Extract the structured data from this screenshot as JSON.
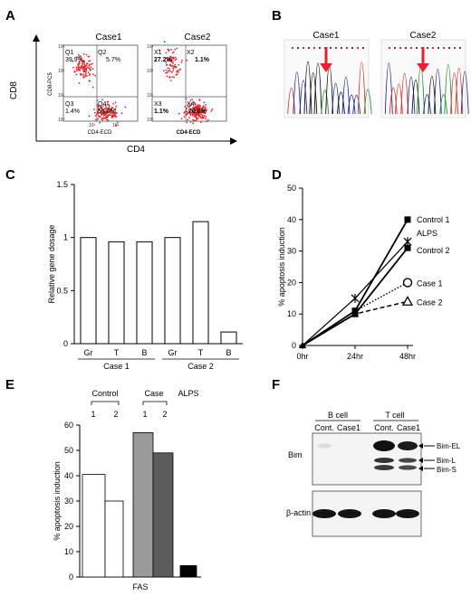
{
  "panels": {
    "A": {
      "letter": "A",
      "case1_title": "Case1",
      "case2_title": "Case2",
      "ylabel": "CD8",
      "xlabel": "CD4",
      "c1_ylabel": "CD8-PC5",
      "c1_xlabel": "CD4-ECD",
      "c2_xlabel": "CD4-ECD",
      "case1_quadrants": {
        "q1": "Q1",
        "q1v": "39.9%",
        "q2": "Q2",
        "q2v": "5.7%",
        "q3": "Q3",
        "q3v": "1.4%",
        "q4": "Q4",
        "q4v": "53.0%"
      },
      "case2_quadrants": {
        "q1": "X1",
        "q1v": "27.2%",
        "q2": "X2",
        "q2v": "1.1%",
        "q3": "X3",
        "q3v": "1.1%",
        "q4": "X4",
        "q4v": "70.6%"
      },
      "ticks": [
        "10³",
        "10²",
        "10¹",
        "10⁰",
        "10¹",
        "10²"
      ]
    },
    "B": {
      "letter": "B",
      "case1": "Case1",
      "case2": "Case2"
    },
    "C": {
      "letter": "C"
    },
    "D": {
      "letter": "D"
    },
    "E": {
      "letter": "E",
      "control": "Control",
      "case": "Case",
      "alps": "ALPS",
      "n1": "1",
      "n2": "2",
      "n3": "1",
      "n4": "2"
    },
    "F": {
      "letter": "F",
      "bcell": "B cell",
      "tcell": "T cell",
      "cont1": "Cont.",
      "case1a": "Case1",
      "cont2": "Cont.",
      "case1b": "Case1",
      "bim": "Bim",
      "actin": "β-actin",
      "bim_el": "Bim-EL",
      "bim_l": "Bim-L",
      "bim_s": "Bim-S"
    }
  },
  "chart_data": [
    {
      "panel": "C",
      "type": "bar",
      "categories": [
        "Gr",
        "T",
        "B",
        "Gr",
        "T",
        "B"
      ],
      "groups": [
        "Case 1",
        "Case 2"
      ],
      "values": [
        1.0,
        0.96,
        0.96,
        1.0,
        1.15,
        0.11
      ],
      "ylabel": "Relative gene dosage",
      "ylim": [
        0,
        1.5
      ],
      "yticks": [
        "0",
        "0.5",
        "1",
        "1.5"
      ]
    },
    {
      "panel": "D",
      "type": "line",
      "x": [
        "0hr",
        "24hr",
        "48hr"
      ],
      "ylabel": "% apoptosis induction",
      "ylim": [
        0,
        50
      ],
      "yticks": [
        "0",
        "10",
        "20",
        "30",
        "40",
        "50"
      ],
      "series": [
        {
          "name": "Control 1",
          "values": [
            0,
            11,
            40
          ]
        },
        {
          "name": "ALPS",
          "values": [
            0,
            15,
            33
          ]
        },
        {
          "name": "Control 2",
          "values": [
            0,
            10,
            31
          ]
        },
        {
          "name": "Case 1",
          "values": [
            0,
            11,
            20
          ]
        },
        {
          "name": "Case 2",
          "values": [
            0,
            10,
            14
          ]
        }
      ]
    },
    {
      "panel": "E",
      "type": "bar",
      "categories": [
        "1",
        "2",
        "1",
        "2",
        ""
      ],
      "values": [
        40.5,
        30,
        57,
        49,
        4.5
      ],
      "colors": [
        "#ffffff",
        "#ffffff",
        "#9a9a9a",
        "#5c5c5c",
        "#000000"
      ],
      "ylabel": "% apoptosis induction",
      "xlabel": "FAS",
      "ylim": [
        0,
        60
      ],
      "yticks": [
        "0",
        "10",
        "20",
        "30",
        "40",
        "50",
        "60"
      ]
    }
  ]
}
